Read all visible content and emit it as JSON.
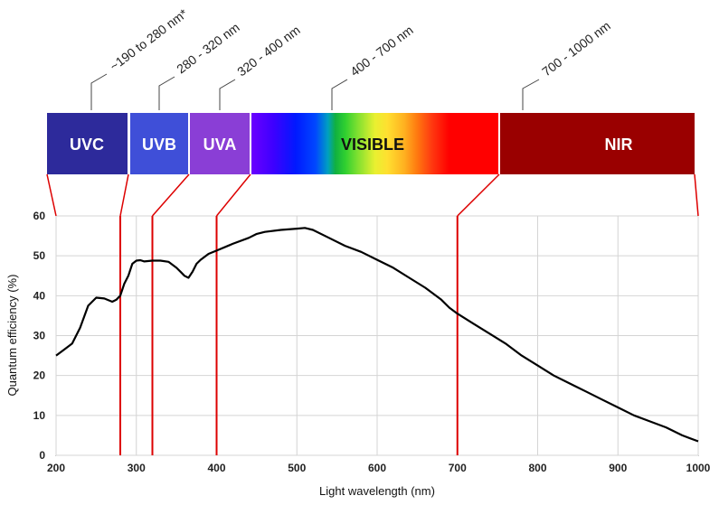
{
  "chart_data": {
    "type": "line",
    "xlabel": "Light wavelength (nm)",
    "ylabel": "Quantum efficiency (%)",
    "xlim": [
      200,
      1000
    ],
    "ylim": [
      0,
      60
    ],
    "xticks": [
      200,
      300,
      400,
      500,
      600,
      700,
      800,
      900,
      1000
    ],
    "yticks": [
      0,
      10,
      20,
      30,
      40,
      50,
      60
    ],
    "grid": true,
    "series": [
      {
        "color": "#000000",
        "x": [
          200,
          210,
          220,
          230,
          240,
          250,
          260,
          270,
          275,
          280,
          285,
          290,
          295,
          300,
          305,
          310,
          320,
          330,
          340,
          350,
          355,
          360,
          365,
          370,
          375,
          380,
          390,
          400,
          420,
          440,
          450,
          460,
          480,
          500,
          510,
          520,
          540,
          560,
          580,
          600,
          620,
          640,
          660,
          680,
          690,
          700,
          720,
          740,
          760,
          780,
          800,
          820,
          840,
          860,
          880,
          900,
          920,
          940,
          960,
          980,
          1000
        ],
        "y": [
          25,
          26.5,
          28,
          32,
          37.5,
          39.5,
          39.3,
          38.5,
          39,
          40,
          43,
          45,
          48,
          48.8,
          48.9,
          48.6,
          48.8,
          48.8,
          48.5,
          47,
          46,
          45,
          44.5,
          46,
          48,
          49,
          50.5,
          51.3,
          53,
          54.5,
          55.5,
          56,
          56.5,
          56.8,
          57,
          56.5,
          54.5,
          52.5,
          51,
          49,
          47,
          44.5,
          42,
          39,
          37,
          35.5,
          33,
          30.5,
          28,
          25,
          22.5,
          20,
          18,
          16,
          14,
          12,
          10,
          8.5,
          7,
          5,
          3.5
        ]
      }
    ],
    "spectrum_bands": [
      {
        "label": "UVC",
        "color": "#2d2a9b",
        "range_label": "~190 to 280 nm*"
      },
      {
        "label": "UVB",
        "color": "#3f4fd8",
        "range_label": "280 - 320 nm"
      },
      {
        "label": "UVA",
        "color": "#8a3ed6",
        "range_label": "320 - 400 nm"
      },
      {
        "label": "VISIBLE",
        "color": "#ffffff",
        "range_label": "400 - 700 nm"
      },
      {
        "label": "NIR",
        "color": "#9a0000",
        "range_label": "700 - 1000 nm"
      }
    ],
    "band_boundaries_nm": [
      280,
      320,
      400,
      700
    ],
    "boundary_line_color": "#dd0000"
  }
}
